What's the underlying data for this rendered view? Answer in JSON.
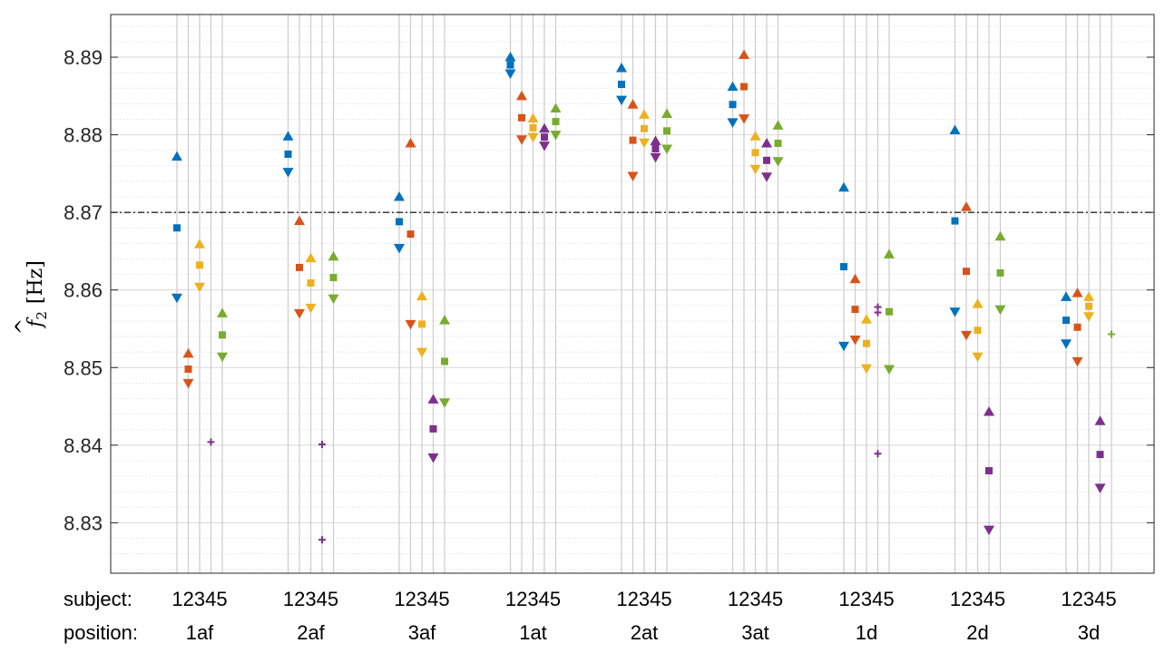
{
  "chart_data": {
    "type": "scatter",
    "title": "",
    "xlabel": "",
    "ylabel": {
      "symbol": "f",
      "subscript": "2",
      "unit": "[Hz]"
    },
    "ylim": [
      8.8235,
      8.8955
    ],
    "yticks": [
      8.83,
      8.84,
      8.85,
      8.86,
      8.87,
      8.88,
      8.89
    ],
    "ytick_labels": [
      "8.83",
      "8.84",
      "8.85",
      "8.86",
      "8.87",
      "8.88",
      "8.89"
    ],
    "minor_grid_step": 0.002,
    "reference_line": 8.87,
    "row_labels": {
      "subject": "subject:",
      "position": "position:"
    },
    "subjects": [
      "1",
      "2",
      "3",
      "4",
      "5"
    ],
    "subject_labels": "12345",
    "series_colors": {
      "1": "#0072BD",
      "2": "#D95319",
      "3": "#EDB120",
      "4": "#7E2F8E",
      "5": "#77AC30"
    },
    "marker_legend": {
      "upper": "triangle-up",
      "estimate": "square",
      "lower": "triangle-down",
      "single": "plus"
    },
    "positions": [
      {
        "label": "1af",
        "points": [
          {
            "subject": 1,
            "upper": 8.8772,
            "estimate": 8.868,
            "lower": 8.859
          },
          {
            "subject": 2,
            "upper": 8.8518,
            "estimate": 8.8498,
            "lower": 8.848
          },
          {
            "subject": 3,
            "upper": 8.8659,
            "estimate": 8.8632,
            "lower": 8.8604
          },
          {
            "subject": 4,
            "single": 8.8404
          },
          {
            "subject": 5,
            "upper": 8.857,
            "estimate": 8.8542,
            "lower": 8.8514
          }
        ]
      },
      {
        "label": "2af",
        "points": [
          {
            "subject": 1,
            "upper": 8.8798,
            "estimate": 8.8775,
            "lower": 8.8752
          },
          {
            "subject": 2,
            "upper": 8.8689,
            "estimate": 8.8629,
            "lower": 8.857
          },
          {
            "subject": 3,
            "upper": 8.8641,
            "estimate": 8.8609,
            "lower": 8.8577
          },
          {
            "subject": 4,
            "single": 8.8401
          },
          {
            "subject": 4,
            "single": 8.8278
          },
          {
            "subject": 5,
            "upper": 8.8643,
            "estimate": 8.8616,
            "lower": 8.8589
          }
        ]
      },
      {
        "label": "3af",
        "points": [
          {
            "subject": 1,
            "upper": 8.872,
            "estimate": 8.8688,
            "lower": 8.8654
          },
          {
            "subject": 2,
            "upper": 8.8789,
            "estimate": 8.8672,
            "lower": 8.8556
          },
          {
            "subject": 3,
            "upper": 8.8592,
            "estimate": 8.8556,
            "lower": 8.852
          },
          {
            "subject": 4,
            "upper": 8.8459,
            "estimate": 8.8421,
            "lower": 8.8384
          },
          {
            "subject": 5,
            "upper": 8.8561,
            "estimate": 8.8508,
            "lower": 8.8455
          }
        ]
      },
      {
        "label": "1at",
        "points": [
          {
            "subject": 1,
            "upper": 8.89,
            "estimate": 8.889,
            "lower": 8.8879
          },
          {
            "subject": 2,
            "upper": 8.885,
            "estimate": 8.8822,
            "lower": 8.8794
          },
          {
            "subject": 3,
            "upper": 8.8821,
            "estimate": 8.8809,
            "lower": 8.8797
          },
          {
            "subject": 4,
            "upper": 8.8808,
            "estimate": 8.8797,
            "lower": 8.8786
          },
          {
            "subject": 5,
            "upper": 8.8834,
            "estimate": 8.8817,
            "lower": 8.88
          }
        ]
      },
      {
        "label": "2at",
        "points": [
          {
            "subject": 1,
            "upper": 8.8886,
            "estimate": 8.8865,
            "lower": 8.8845
          },
          {
            "subject": 2,
            "upper": 8.8839,
            "estimate": 8.8793,
            "lower": 8.8747
          },
          {
            "subject": 3,
            "upper": 8.8826,
            "estimate": 8.8808,
            "lower": 8.879
          },
          {
            "subject": 4,
            "upper": 8.8792,
            "estimate": 8.8782,
            "lower": 8.8771
          },
          {
            "subject": 5,
            "upper": 8.8827,
            "estimate": 8.8805,
            "lower": 8.8782
          }
        ]
      },
      {
        "label": "3at",
        "points": [
          {
            "subject": 1,
            "upper": 8.8862,
            "estimate": 8.8839,
            "lower": 8.8816
          },
          {
            "subject": 2,
            "upper": 8.8903,
            "estimate": 8.8862,
            "lower": 8.8821
          },
          {
            "subject": 3,
            "upper": 8.8798,
            "estimate": 8.8777,
            "lower": 8.8756
          },
          {
            "subject": 4,
            "upper": 8.8789,
            "estimate": 8.8767,
            "lower": 8.8746
          },
          {
            "subject": 5,
            "upper": 8.8812,
            "estimate": 8.8789,
            "lower": 8.8766
          }
        ]
      },
      {
        "label": "1d",
        "points": [
          {
            "subject": 1,
            "upper": 8.8732,
            "estimate": 8.863,
            "lower": 8.8528
          },
          {
            "subject": 2,
            "upper": 8.8614,
            "estimate": 8.8575,
            "lower": 8.8536
          },
          {
            "subject": 3,
            "upper": 8.8562,
            "estimate": 8.8531,
            "lower": 8.8499
          },
          {
            "subject": 4,
            "single": 8.8578
          },
          {
            "subject": 4,
            "single": 8.8571
          },
          {
            "subject": 4,
            "single": 8.8389
          },
          {
            "subject": 5,
            "upper": 8.8646,
            "estimate": 8.8572,
            "lower": 8.8498
          }
        ]
      },
      {
        "label": "2d",
        "points": [
          {
            "subject": 1,
            "upper": 8.8806,
            "estimate": 8.8689,
            "lower": 8.8572
          },
          {
            "subject": 2,
            "upper": 8.8707,
            "estimate": 8.8624,
            "lower": 8.8542
          },
          {
            "subject": 3,
            "upper": 8.8582,
            "estimate": 8.8548,
            "lower": 8.8514
          },
          {
            "subject": 4,
            "upper": 8.8443,
            "estimate": 8.8367,
            "lower": 8.8291
          },
          {
            "subject": 5,
            "upper": 8.8669,
            "estimate": 8.8622,
            "lower": 8.8575
          }
        ]
      },
      {
        "label": "3d",
        "points": [
          {
            "subject": 1,
            "upper": 8.8591,
            "estimate": 8.8561,
            "lower": 8.8531
          },
          {
            "subject": 2,
            "upper": 8.8596,
            "estimate": 8.8552,
            "lower": 8.8508
          },
          {
            "subject": 3,
            "upper": 8.8591,
            "estimate": 8.8579,
            "lower": 8.8566
          },
          {
            "subject": 4,
            "upper": 8.8431,
            "estimate": 8.8388,
            "lower": 8.8345
          },
          {
            "subject": 5,
            "single": 8.8543
          }
        ]
      }
    ]
  }
}
